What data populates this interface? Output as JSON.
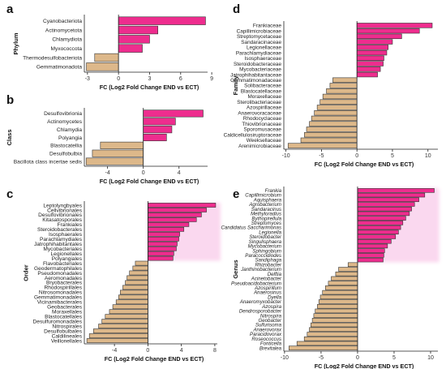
{
  "figure": {
    "panels_order": [
      "a",
      "b",
      "c",
      "d",
      "e"
    ]
  },
  "colors": {
    "positive": "#ee2d8e",
    "negative": "#ddb88a",
    "outline": "#333333",
    "axis": "#222222",
    "glow": "#f6a9dc"
  },
  "chart_data": [
    {
      "panel_letter": "a",
      "type": "bar",
      "orientation": "horizontal",
      "ylabel": "Phylum",
      "xlabel": "FC (Log2 Fold Change END vs ECT)",
      "xlim": [
        -3.3,
        8.6
      ],
      "xticks": [
        -3,
        0,
        3,
        6,
        9
      ],
      "categories": [
        "Cyanobacteriota",
        "Actinomycetota",
        "Chlamydiota",
        "Myxococcota",
        "Thermodesulfobacteriota",
        "Gemmatimonadota"
      ],
      "values": [
        8.4,
        3.8,
        3.0,
        2.3,
        -2.3,
        -3.1
      ]
    },
    {
      "panel_letter": "b",
      "type": "bar",
      "orientation": "horizontal",
      "ylabel": "Class",
      "xlabel": "FC (Log2 Fold Change END vs ECT)",
      "xlim": [
        -6.6,
        7.2
      ],
      "xticks": [
        -4,
        0,
        4
      ],
      "categories": [
        "Desulfovibrionia",
        "Actinomycetes",
        "Chlamydia",
        "Polyangia",
        "Blastocatellia",
        "Desulfobulbia",
        "Bacillota class incertae sedis"
      ],
      "values": [
        6.7,
        3.6,
        3.2,
        2.6,
        -4.8,
        -5.7,
        -6.4
      ]
    },
    {
      "panel_letter": "c",
      "type": "bar",
      "orientation": "horizontal",
      "ylabel": "Order",
      "xlabel": "FC (Log2 Fold Change END vs ECT)",
      "xlim": [
        -7.6,
        8.3
      ],
      "xticks": [
        -4,
        0,
        4,
        8
      ],
      "categories": [
        "Leptolyngbyales",
        "Cellvibrionales",
        "Desulfovibrionales",
        "Kitasatosporales",
        "Frankiales",
        "Steroidobacterales",
        "Isosphaerales",
        "Parachlamydiales",
        "Jatrophihabitantales",
        "Mycobacteriales",
        "Legionellales",
        "Polyangiales",
        "Flavobacteriales",
        "Geodermatophilales",
        "Pseudomonadales",
        "Aeromonadales",
        "Bryobacterales",
        "Rhodospirillales",
        "Nitrosomonadales",
        "Gemmatimonadales",
        "Vicinamibacterales",
        "Geobacterales",
        "Moraxellales",
        "Blastocatellales",
        "Desulfuromonadales",
        "Nitrospirales",
        "Desulfobulbales",
        "Caldilineales",
        "Veillonellales"
      ],
      "values": [
        8.1,
        7.0,
        6.4,
        5.8,
        4.9,
        4.3,
        3.8,
        3.7,
        3.5,
        3.4,
        3.1,
        3.0,
        -1.5,
        -1.8,
        -2.2,
        -2.5,
        -2.7,
        -3.0,
        -3.3,
        -3.5,
        -3.8,
        -4.2,
        -4.6,
        -5.1,
        -5.5,
        -5.9,
        -6.5,
        -7.0,
        -7.3
      ]
    },
    {
      "panel_letter": "d",
      "type": "bar",
      "orientation": "horizontal",
      "ylabel": "Family",
      "xlabel": "FC (Log2 Fold Change END vs ECT)",
      "xlim": [
        -10.3,
        11.4
      ],
      "xticks": [
        -10,
        -5,
        0,
        5,
        10
      ],
      "categories": [
        "Frankiaceae",
        "Capillimicrobiaceae",
        "Streptomycetaceae",
        "Sandaracinaceae",
        "Legionellaceae",
        "Parachlamydiaceae",
        "Isosphaeraceae",
        "Steroidobacteraceae",
        "Mycobacteriaceae",
        "Jatrophihabitantaceae",
        "Gemmatimonadaceae",
        "Solibacteraceae",
        "Blastocatellaceae",
        "Moraxellaceae",
        "Sterolibacteriaceae",
        "Azospirillaceae",
        "Anaerovoracaceae",
        "Rhodocyclaceae",
        "Thiovibrionaceae",
        "Sporomusaceae",
        "Caldicellulosiruptoraceae",
        "Weeksellaceae",
        "Arenimicrobiaceae"
      ],
      "values": [
        10.6,
        8.8,
        6.3,
        5.0,
        4.4,
        4.2,
        3.8,
        3.7,
        3.3,
        2.9,
        -3.4,
        -3.8,
        -4.3,
        -4.8,
        -5.2,
        -5.6,
        -6.0,
        -6.4,
        -6.7,
        -7.1,
        -7.4,
        -7.9,
        -9.7
      ]
    },
    {
      "panel_letter": "e",
      "type": "bar",
      "orientation": "horizontal",
      "ylabel": "Genus",
      "xlabel": "FC (Log2 Fold Change END vs ECT)",
      "xlim": [
        -10.1,
        11.0
      ],
      "xticks": [
        -10,
        -5,
        0,
        5,
        10
      ],
      "categories": [
        "Frankia",
        "Capillimicrobium",
        "Aquisphaera",
        "Agrobacterium",
        "Sandaracinus",
        "Methyloradius",
        "Bythopirellula",
        "Streptomyces",
        "Candidatus Saccharimonas",
        "Legionella",
        "Steroidobacter",
        "Singulisphaera",
        "Mycobacterium",
        "Sphingobium",
        "Paracoccidiodes",
        "Sandiphaga",
        "Rhizobacter",
        "Janthinobacterium",
        "Delftia",
        "Acinetobacter",
        "Pseudoacidobacterium",
        "Azospirillum",
        "Anaerosinus",
        "Dyella",
        "Anaeromyxobacter",
        "Azospira",
        "Dendrosporobacter",
        "Nitrospira",
        "Geobacter",
        "Sulfurisoma",
        "Anaerovorax",
        "Paracidovorax",
        "Roseococcus",
        "Fonticella",
        "Brevitalea"
      ],
      "values": [
        10.5,
        9.2,
        8.4,
        7.8,
        7.4,
        7.1,
        6.6,
        6.2,
        5.9,
        5.6,
        5.2,
        4.6,
        4.1,
        3.7,
        3.6,
        3.5,
        -1.3,
        -2.6,
        -3.0,
        -3.6,
        -4.0,
        -4.4,
        -4.8,
        -5.1,
        -5.3,
        -5.5,
        -5.8,
        -6.0,
        -6.2,
        -6.4,
        -6.6,
        -6.9,
        -7.3,
        -8.3,
        -9.4
      ]
    }
  ]
}
